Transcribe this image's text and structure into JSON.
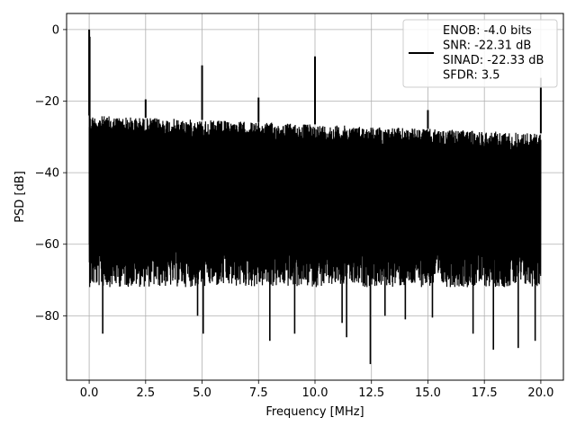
{
  "chart_data": {
    "type": "line",
    "title": "",
    "xlabel": "Frequency [MHz]",
    "ylabel": "PSD [dB]",
    "xlim": [
      -1.0,
      21.0
    ],
    "ylim": [
      -98.0,
      4.5
    ],
    "xticks": [
      0.0,
      2.5,
      5.0,
      7.5,
      10.0,
      12.5,
      15.0,
      17.5,
      20.0
    ],
    "xtick_labels": [
      "0.0",
      "2.5",
      "5.0",
      "7.5",
      "10.0",
      "12.5",
      "15.0",
      "17.5",
      "20.0"
    ],
    "yticks": [
      0,
      -20,
      -40,
      -60,
      -80
    ],
    "ytick_labels": [
      "0",
      "−20",
      "−40",
      "−60",
      "−80"
    ],
    "grid": true,
    "legend_position": "top-right",
    "series": [
      {
        "name": "ENOB: -4.0 bits\nSNR: -22.31 dB\nSINAD: -22.33 dB\nSFDR: 3.5",
        "color": "#000000",
        "description": "noisy PSD trace, noise band approx -27 to -65 dB",
        "noise_top_start": -24.0,
        "noise_top_end": -29.0,
        "noise_bottom": -65.0,
        "spikes": [
          {
            "x": 0.0,
            "y": 0.0
          },
          {
            "x": 2.5,
            "y": -19.5
          },
          {
            "x": 5.0,
            "y": -10.0
          },
          {
            "x": 7.5,
            "y": -19.0
          },
          {
            "x": 10.0,
            "y": -7.5
          },
          {
            "x": 15.0,
            "y": -22.5
          },
          {
            "x": 20.0,
            "y": -13.5
          }
        ],
        "dips": [
          {
            "x": 0.6,
            "y": -85.0
          },
          {
            "x": 4.8,
            "y": -80.0
          },
          {
            "x": 5.05,
            "y": -85.0
          },
          {
            "x": 8.0,
            "y": -87.0
          },
          {
            "x": 9.1,
            "y": -85.0
          },
          {
            "x": 11.2,
            "y": -82.0
          },
          {
            "x": 11.4,
            "y": -86.0
          },
          {
            "x": 12.45,
            "y": -93.5
          },
          {
            "x": 13.1,
            "y": -80.0
          },
          {
            "x": 14.0,
            "y": -81.0
          },
          {
            "x": 15.2,
            "y": -80.5
          },
          {
            "x": 17.0,
            "y": -85.0
          },
          {
            "x": 17.9,
            "y": -89.5
          },
          {
            "x": 19.0,
            "y": -89.0
          },
          {
            "x": 19.75,
            "y": -87.0
          }
        ]
      }
    ]
  },
  "legend": {
    "lines": [
      "ENOB: -4.0 bits",
      "SNR: -22.31 dB",
      "SINAD: -22.33 dB",
      "SFDR: 3.5"
    ]
  },
  "colors": {
    "line": "#000000",
    "grid": "#b0b0b0",
    "background": "#ffffff"
  }
}
